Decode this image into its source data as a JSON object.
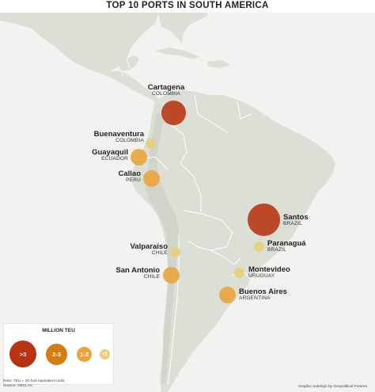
{
  "title": "TOP 10 PORTS IN SOUTH AMERICA",
  "colors": {
    "ocean": "#f2f2f0",
    "land": "#dcdfd5",
    "land_shadow": "#cdd0c6",
    "border": "#ffffff",
    "tier_gt3": "#b8330f",
    "tier_2_3": "#d57c12",
    "tier_1_2": "#e9a43b",
    "tier_lt1": "#e4cf7a"
  },
  "ports": [
    {
      "city": "Cartagena",
      "country": "COLOMBIA",
      "tier": ">3"
    },
    {
      "city": "Buenaventura",
      "country": "COLOMBIA",
      "tier": "<1"
    },
    {
      "city": "Guayaquil",
      "country": "ECUADOR",
      "tier": "1-2"
    },
    {
      "city": "Callao",
      "country": "PERU",
      "tier": "1-2"
    },
    {
      "city": "Santos",
      "country": "BRAZIL",
      "tier": ">3"
    },
    {
      "city": "Paranaguá",
      "country": "BRAZIL",
      "tier": "<1"
    },
    {
      "city": "Valparaíso",
      "country": "CHILE",
      "tier": "<1"
    },
    {
      "city": "San Antonio",
      "country": "CHILE",
      "tier": "1-2"
    },
    {
      "city": "Montevideo",
      "country": "URUGUAY",
      "tier": "<1"
    },
    {
      "city": "Buenos Aires",
      "country": "ARGENTINA",
      "tier": "1-2"
    }
  ],
  "legend": {
    "title": "MILLION TEU",
    "items": [
      ">3",
      "2-3",
      "1-2",
      "<1"
    ]
  },
  "footnotes": {
    "note": "Note: TEU = 20-foot equivalent units.",
    "source": "Source: ©ECLAC",
    "credit": "Graphic redesign by Geopolitical Futures"
  }
}
